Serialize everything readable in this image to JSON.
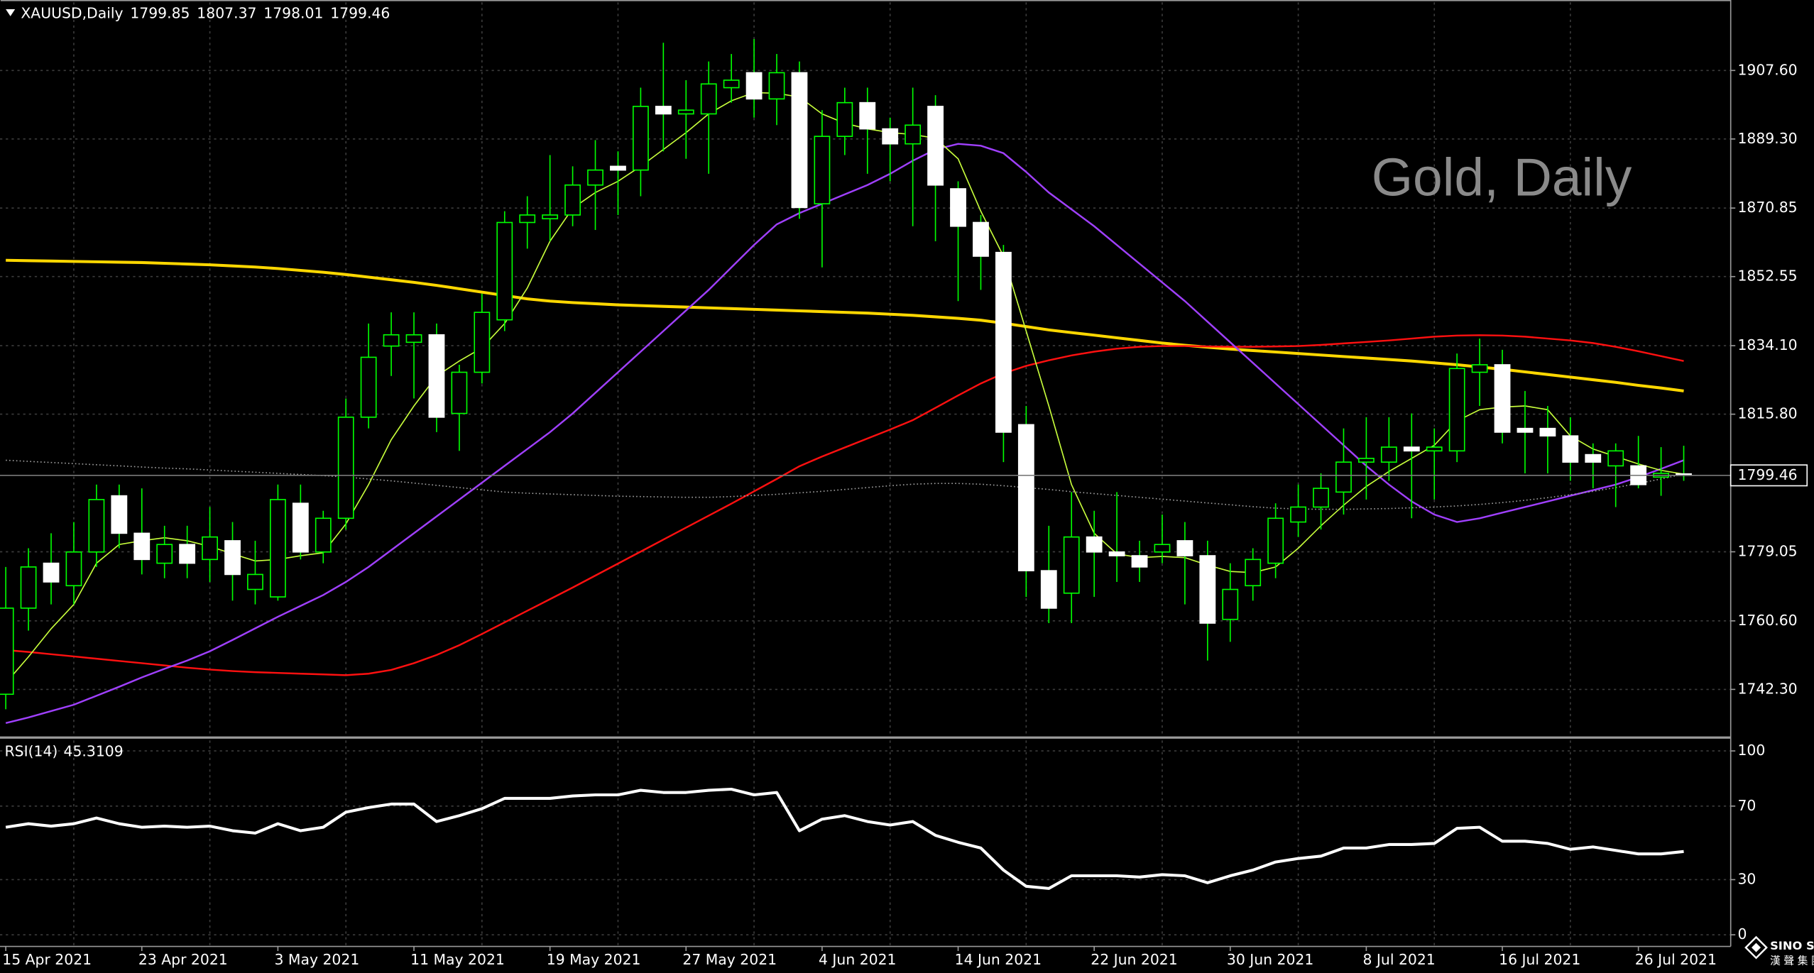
{
  "chart_data": [
    {
      "type": "candlestick",
      "title": "XAUUSD,Daily",
      "watermark": "Gold, Daily",
      "categories": [
        "15 Apr 2021",
        null,
        null,
        null,
        null,
        null,
        "23 Apr 2021",
        null,
        null,
        null,
        null,
        null,
        "3 May 2021",
        null,
        null,
        null,
        null,
        null,
        "11 May 2021",
        null,
        null,
        null,
        null,
        null,
        "19 May 2021",
        null,
        null,
        null,
        null,
        null,
        "27 May 2021",
        null,
        null,
        null,
        null,
        null,
        "4 Jun 2021",
        null,
        null,
        null,
        null,
        null,
        "14 Jun 2021",
        null,
        null,
        null,
        null,
        null,
        "22 Jun 2021",
        null,
        null,
        null,
        null,
        null,
        "30 Jun 2021",
        null,
        null,
        null,
        null,
        null,
        "8 Jul 2021",
        null,
        null,
        null,
        null,
        null,
        "16 Jul 2021",
        null,
        null,
        null,
        null,
        null,
        "26 Jul 2021",
        null,
        null
      ],
      "open": [
        1741,
        1764,
        1776,
        1770,
        1779,
        1794,
        1784,
        1776,
        1781,
        1777,
        1782,
        1769,
        1767,
        1792,
        1779,
        1788,
        1815,
        1834,
        1835,
        1837,
        1816,
        1827,
        1841,
        1867,
        1868,
        1869,
        1877,
        1882,
        1881,
        1898,
        1896,
        1896,
        1903,
        1907,
        1900,
        1907,
        1872,
        1890,
        1899,
        1892,
        1888,
        1898,
        1876,
        1867,
        1859,
        1813,
        1774,
        1768,
        1783,
        1779,
        1778,
        1779,
        1782,
        1778,
        1761,
        1770,
        1776,
        1787,
        1791,
        1795,
        1803,
        1803,
        1807,
        1806,
        1806,
        1827,
        1829,
        1812,
        1812,
        1810,
        1805,
        1802,
        1802,
        1799,
        1799.85
      ],
      "high": [
        1775,
        1780,
        1784,
        1787,
        1797,
        1797,
        1796,
        1786,
        1786,
        1791,
        1787,
        1782,
        1797,
        1797,
        1790,
        1820,
        1840,
        1843,
        1843,
        1840,
        1829,
        1848,
        1870,
        1874,
        1885,
        1882,
        1889,
        1886,
        1903,
        1915,
        1905,
        1910,
        1912,
        1916,
        1912,
        1910,
        1897,
        1903,
        1903,
        1895,
        1903,
        1901,
        1878,
        1869,
        1861,
        1818,
        1786,
        1795,
        1790,
        1795,
        1782,
        1789,
        1787,
        1782,
        1776,
        1780,
        1792,
        1797,
        1800,
        1812,
        1815,
        1815,
        1816,
        1812,
        1832,
        1836,
        1833,
        1822,
        1818,
        1815,
        1808,
        1808,
        1810,
        1807,
        1807.37
      ],
      "low": [
        1737,
        1758,
        1765,
        1765,
        1775,
        1780,
        1773,
        1772,
        1772,
        1771,
        1766,
        1765,
        1766,
        1777,
        1776,
        1785,
        1812,
        1826,
        1820,
        1811,
        1806,
        1824,
        1838,
        1860,
        1862,
        1866,
        1865,
        1869,
        1874,
        1886,
        1884,
        1880,
        1899,
        1895,
        1893,
        1868,
        1855,
        1885,
        1880,
        1878,
        1866,
        1862,
        1846,
        1849,
        1803,
        1767,
        1760,
        1760,
        1767,
        1771,
        1771,
        1776,
        1765,
        1750,
        1755,
        1766,
        1772,
        1783,
        1785,
        1789,
        1793,
        1798,
        1788,
        1793,
        1803,
        1818,
        1808,
        1800,
        1800,
        1798,
        1796,
        1791,
        1796,
        1794,
        1798.01
      ],
      "close": [
        1764,
        1775,
        1771,
        1779,
        1793,
        1784,
        1777,
        1781,
        1776,
        1783,
        1773,
        1773,
        1793,
        1779,
        1788,
        1815,
        1831,
        1837,
        1837,
        1815,
        1827,
        1843,
        1867,
        1869,
        1869,
        1877,
        1881,
        1881,
        1898,
        1896,
        1897,
        1904,
        1905,
        1900,
        1907,
        1871,
        1890,
        1899,
        1892,
        1888,
        1893,
        1877,
        1866,
        1858,
        1811,
        1774,
        1764,
        1783,
        1779,
        1778,
        1775,
        1781,
        1778,
        1760,
        1769,
        1777,
        1788,
        1791,
        1796,
        1803,
        1804,
        1807,
        1806,
        1807,
        1828,
        1829,
        1811,
        1811,
        1810,
        1803,
        1803,
        1806,
        1797,
        1800,
        1799.46
      ],
      "up_color": "#000000",
      "up_outline": "#00ff00",
      "down_color": "#ffffff",
      "wick_color": "#00ff00",
      "lines": [
        {
          "color": "#ffd700",
          "width": 2.5,
          "dashed": false,
          "values": [
            1856.9,
            1856.8,
            1856.7,
            1856.6,
            1856.5,
            1856.4,
            1856.3,
            1856.1,
            1855.9,
            1855.7,
            1855.4,
            1855.1,
            1854.7,
            1854.2,
            1853.7,
            1853.1,
            1852.4,
            1851.7,
            1851.0,
            1850.2,
            1849.3,
            1848.4,
            1847.5,
            1846.6,
            1846.0,
            1845.6,
            1845.3,
            1845.0,
            1844.8,
            1844.6,
            1844.4,
            1844.2,
            1844.0,
            1843.8,
            1843.6,
            1843.4,
            1843.2,
            1843.0,
            1842.8,
            1842.5,
            1842.2,
            1841.8,
            1841.4,
            1840.9,
            1840.1,
            1839.2,
            1838.3,
            1837.6,
            1836.9,
            1836.2,
            1835.5,
            1834.8,
            1834.2,
            1833.7,
            1833.2,
            1832.8,
            1832.4,
            1832.0,
            1831.6,
            1831.2,
            1830.8,
            1830.4,
            1830.0,
            1829.5,
            1829.0,
            1828.4,
            1827.8,
            1827.1,
            1826.4,
            1825.7,
            1825.0,
            1824.3,
            1823.5,
            1822.8,
            1822.0
          ]
        },
        {
          "color": "#ff1010",
          "width": 1.5,
          "dashed": false,
          "values": [
            1752.8,
            1752.3,
            1751.7,
            1751.1,
            1750.5,
            1749.9,
            1749.3,
            1748.7,
            1748.1,
            1747.6,
            1747.2,
            1746.9,
            1746.7,
            1746.5,
            1746.3,
            1746.1,
            1746.5,
            1747.5,
            1749.3,
            1751.5,
            1754.1,
            1757.1,
            1760.2,
            1763.3,
            1766.4,
            1769.5,
            1772.7,
            1775.9,
            1779.1,
            1782.3,
            1785.5,
            1788.7,
            1791.9,
            1795.2,
            1798.5,
            1801.9,
            1804.5,
            1806.9,
            1809.3,
            1811.7,
            1814.2,
            1817.5,
            1820.8,
            1824.0,
            1826.7,
            1828.7,
            1830.2,
            1831.5,
            1832.5,
            1833.3,
            1833.8,
            1834.0,
            1834.0,
            1833.9,
            1833.8,
            1833.8,
            1833.9,
            1834.0,
            1834.3,
            1834.7,
            1835.1,
            1835.5,
            1836.0,
            1836.5,
            1836.8,
            1836.9,
            1836.8,
            1836.5,
            1836.0,
            1835.5,
            1834.8,
            1833.8,
            1832.6,
            1831.3,
            1830.0
          ]
        },
        {
          "color": "#a040ff",
          "width": 1.5,
          "dashed": false,
          "values": [
            1733.3,
            1734.8,
            1736.5,
            1738.2,
            1740.6,
            1743.0,
            1745.5,
            1747.8,
            1750.0,
            1752.5,
            1755.5,
            1758.6,
            1761.7,
            1764.6,
            1767.5,
            1771.0,
            1775.0,
            1779.5,
            1784.0,
            1788.5,
            1793.0,
            1797.5,
            1802.0,
            1806.5,
            1811.0,
            1816.0,
            1821.5,
            1827.0,
            1832.5,
            1838.0,
            1843.5,
            1849.0,
            1855.0,
            1861.0,
            1866.5,
            1869.5,
            1872.0,
            1874.5,
            1877.0,
            1880.0,
            1883.5,
            1886.5,
            1888.0,
            1887.5,
            1885.5,
            1880.5,
            1875.0,
            1870.5,
            1866.0,
            1861.0,
            1856.0,
            1851.0,
            1846.0,
            1840.5,
            1835.0,
            1829.5,
            1824.0,
            1818.5,
            1813.0,
            1807.5,
            1802.0,
            1797.0,
            1792.5,
            1789.0,
            1787.0,
            1788.0,
            1789.5,
            1791.0,
            1792.5,
            1794.0,
            1795.5,
            1797.0,
            1799.0,
            1801.2,
            1803.5
          ]
        },
        {
          "color": "#c8ff3c",
          "width": 1,
          "dashed": false,
          "values": [
            1744.0,
            1751.0,
            1758.5,
            1765.0,
            1776.0,
            1781.0,
            1782.0,
            1782.8,
            1782.0,
            1780.5,
            1778.5,
            1776.6,
            1777.0,
            1778.0,
            1778.8,
            1786.5,
            1797.0,
            1809.0,
            1818.0,
            1826.0,
            1830.0,
            1833.5,
            1840.0,
            1849.5,
            1862.0,
            1870.8,
            1875.0,
            1878.0,
            1882.0,
            1886.5,
            1891.0,
            1896.0,
            1899.5,
            1901.7,
            1901.5,
            1900.5,
            1896.0,
            1893.5,
            1892.0,
            1891.0,
            1890.5,
            1889.5,
            1884.0,
            1870.0,
            1858.0,
            1838.0,
            1818.0,
            1797.0,
            1784.0,
            1778.5,
            1777.5,
            1777.8,
            1777.5,
            1775.5,
            1773.8,
            1773.5,
            1775.0,
            1780.0,
            1786.0,
            1791.5,
            1796.5,
            1800.5,
            1804.0,
            1807.5,
            1814.0,
            1817.0,
            1817.7,
            1818.0,
            1817.0,
            1810.0,
            1806.5,
            1804.5,
            1802.5,
            1800.8,
            1799.8
          ]
        },
        {
          "color": "#a0a0a0",
          "width": 1,
          "dashed": true,
          "values": [
            1803.5,
            1803.2,
            1802.9,
            1802.6,
            1802.3,
            1802.0,
            1801.7,
            1801.4,
            1801.2,
            1800.9,
            1800.6,
            1800.3,
            1800.0,
            1799.7,
            1799.4,
            1799.0,
            1798.5,
            1798.0,
            1797.4,
            1796.8,
            1796.2,
            1795.6,
            1795.0,
            1794.7,
            1794.5,
            1794.3,
            1794.1,
            1793.9,
            1793.8,
            1793.7,
            1793.6,
            1793.6,
            1793.8,
            1794.1,
            1794.4,
            1794.8,
            1795.2,
            1795.7,
            1796.2,
            1796.7,
            1797.1,
            1797.3,
            1797.3,
            1797.1,
            1796.7,
            1796.2,
            1795.7,
            1795.1,
            1794.6,
            1794.1,
            1793.6,
            1793.1,
            1792.6,
            1792.1,
            1791.6,
            1791.1,
            1790.7,
            1790.5,
            1790.4,
            1790.4,
            1790.5,
            1790.6,
            1790.8,
            1791.0,
            1791.3,
            1791.7,
            1792.2,
            1792.8,
            1793.5,
            1794.3,
            1795.2,
            1796.2,
            1797.3,
            1798.5,
            1799.8
          ]
        }
      ],
      "ylim": [
        1729.9,
        1925.8
      ],
      "yticks": [
        {
          "value": 1907.6,
          "label": "1907.60"
        },
        {
          "value": 1889.3,
          "label": "1889.30"
        },
        {
          "value": 1870.85,
          "label": "1870.85"
        },
        {
          "value": 1852.55,
          "label": "1852.55"
        },
        {
          "value": 1834.1,
          "label": "1834.10"
        },
        {
          "value": 1815.8,
          "label": "1815.80"
        },
        {
          "value": 1779.05,
          "label": "1779.05"
        },
        {
          "value": 1760.6,
          "label": "1760.60"
        },
        {
          "value": 1742.3,
          "label": "1742.30"
        }
      ],
      "grid": true
    },
    {
      "type": "line",
      "title": "RSI(14)",
      "color": "#ffffff",
      "values": [
        58.5,
        60.4,
        59.1,
        60.4,
        63.5,
        60.4,
        58.5,
        59.1,
        58.5,
        59.1,
        56.6,
        55.3,
        60.4,
        56.6,
        58.5,
        66.7,
        69.2,
        71.1,
        71.1,
        61.6,
        64.8,
        68.6,
        74.2,
        74.2,
        74.2,
        75.5,
        76.1,
        76.1,
        78.6,
        77.4,
        77.4,
        78.6,
        79.2,
        76.1,
        77.4,
        56.6,
        62.9,
        64.8,
        61.6,
        59.7,
        61.6,
        54.1,
        50.3,
        47.2,
        35.2,
        26.4,
        25.2,
        32.1,
        32.1,
        32.1,
        31.4,
        32.7,
        32.1,
        28.3,
        32.1,
        35.2,
        39.6,
        41.5,
        42.8,
        47.2,
        47.2,
        49.1,
        49.1,
        49.7,
        57.9,
        58.5,
        50.9,
        50.9,
        49.7,
        46.5,
        47.8,
        45.9,
        44.0,
        44.0,
        45.3109
      ],
      "ylim": [
        -6.3,
        105.7
      ],
      "yticks": [
        100,
        70,
        30,
        0
      ],
      "grid": true
    }
  ],
  "logo": {
    "name": "SINO SOUND",
    "subtitle": "漢 聲 集 團"
  }
}
